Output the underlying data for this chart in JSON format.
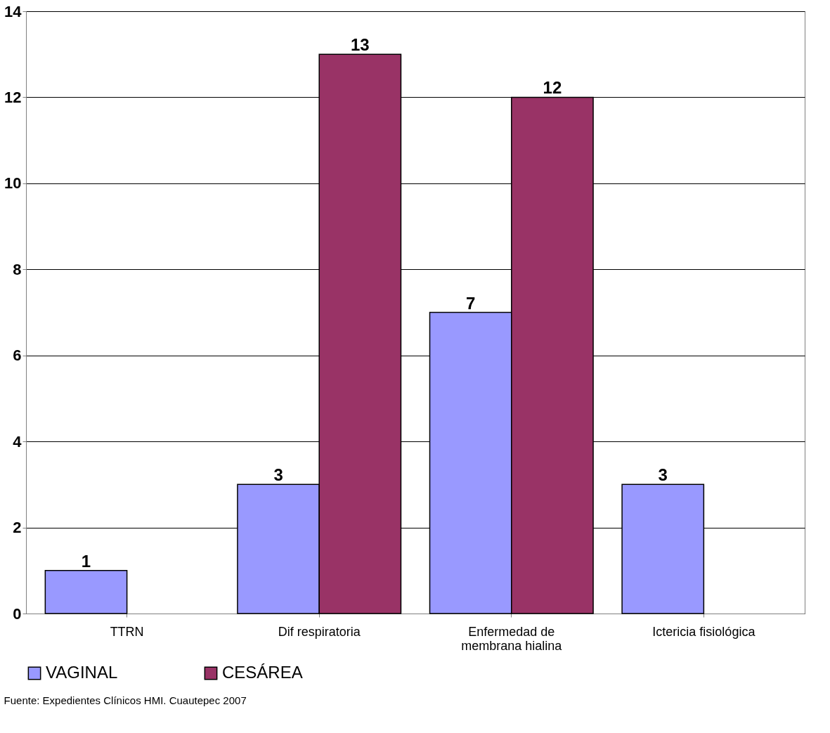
{
  "chart_data": {
    "type": "bar",
    "categories": [
      "TTRN",
      "Dif respiratoria",
      "Enfermedad de\nmembrana hialina",
      "Ictericia fisiológica"
    ],
    "series": [
      {
        "name": "VAGINAL",
        "color": "#9999ff",
        "values": [
          1,
          3,
          7,
          3
        ],
        "value_labels": [
          "1",
          "3",
          "7",
          "3"
        ]
      },
      {
        "name": "CESÁREA",
        "color": "#993366",
        "values": [
          0,
          13,
          12,
          0
        ],
        "value_labels": [
          null,
          "13",
          "12",
          null
        ]
      }
    ],
    "ylim": [
      0,
      14
    ],
    "yticks": [
      0,
      2,
      4,
      6,
      8,
      10,
      12,
      14
    ],
    "grid": "y",
    "legend": "bottom",
    "annotations": [
      "Fuente: Expedientes Clínicos HMI. Cuautepec 2007"
    ]
  }
}
